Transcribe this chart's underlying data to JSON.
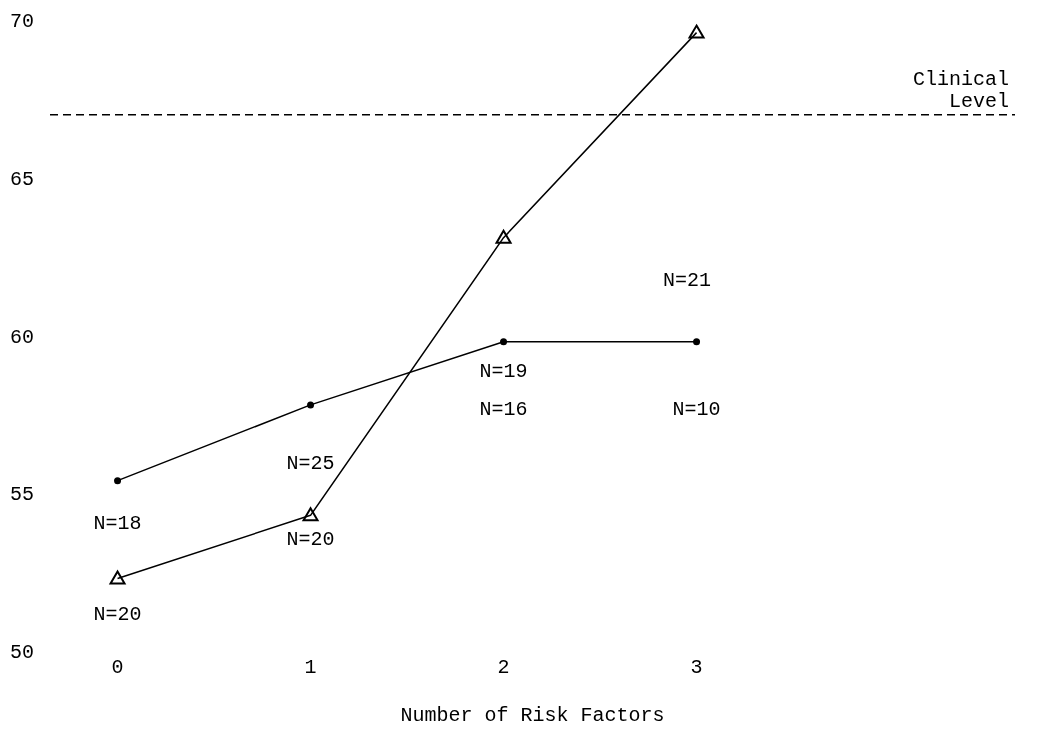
{
  "chart_data": {
    "type": "line",
    "xlabel": "Number of Risk Factors",
    "x": [
      0,
      1,
      2,
      3
    ],
    "series": [
      {
        "color": "#000000",
        "marker": "triangle",
        "values": [
          52.3,
          54.3,
          63.1,
          69.6
        ]
      },
      {
        "color": "#000000",
        "marker": "circle",
        "values": [
          55.4,
          57.8,
          59.8,
          59.8
        ]
      }
    ],
    "xlim": [
      -0.35,
      4.65
    ],
    "xticks": [
      0,
      1,
      2,
      3
    ],
    "ylim": [
      50,
      70
    ],
    "yticks": [
      50,
      55,
      60,
      65,
      70
    ],
    "line_style": "solid",
    "ref_lines": [
      {
        "axis": "y",
        "value": 67,
        "label": "Clinical Level",
        "line_style": "dashed"
      }
    ],
    "annotations": [
      "N=18",
      "N=20",
      "N=25",
      "N=20",
      "N=19",
      "N=16",
      "N=21",
      "N=10"
    ]
  }
}
